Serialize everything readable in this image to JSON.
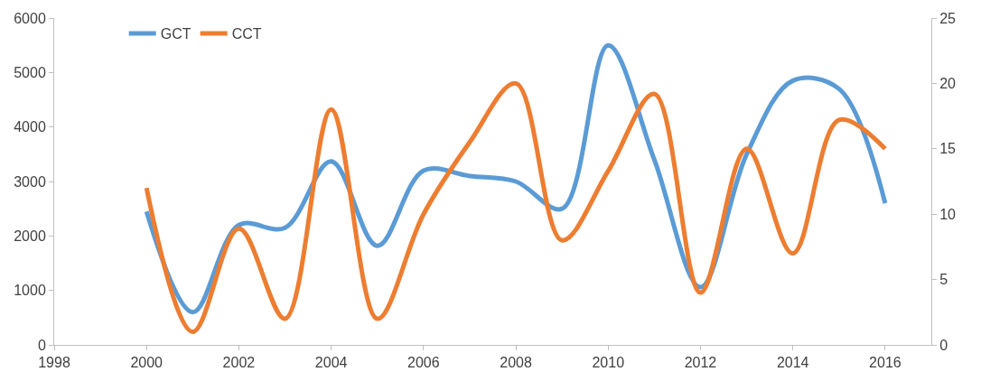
{
  "chart_data": {
    "type": "line",
    "x": [
      2000,
      2001,
      2002,
      2003,
      2004,
      2005,
      2006,
      2007,
      2008,
      2009,
      2010,
      2011,
      2012,
      2013,
      2014,
      2015,
      2016
    ],
    "series": [
      {
        "name": "GCT",
        "color": "#5b9bd5",
        "values": [
          2450,
          600,
          2200,
          2150,
          3370,
          1820,
          3200,
          3100,
          3000,
          2500,
          5500,
          3400,
          1060,
          3500,
          4850,
          4700,
          2600
        ]
      },
      {
        "name": "CCT",
        "color": "#ed7d31",
        "axis": "y2",
        "values": [
          12,
          1,
          8.9,
          2,
          18,
          2,
          10,
          15.5,
          20,
          8,
          13.3,
          19.2,
          4,
          15,
          7,
          17.2,
          15
        ]
      }
    ],
    "xlim": [
      1998,
      2017
    ],
    "xticks": [
      1998,
      2000,
      2002,
      2004,
      2006,
      2008,
      2010,
      2012,
      2014,
      2016
    ],
    "ylim": [
      0,
      6000
    ],
    "yticks": [
      0,
      1000,
      2000,
      3000,
      4000,
      5000,
      6000
    ],
    "y2lim": [
      0,
      25
    ],
    "y2ticks": [
      0,
      5,
      10,
      15,
      20,
      25
    ],
    "legend": "top left"
  }
}
